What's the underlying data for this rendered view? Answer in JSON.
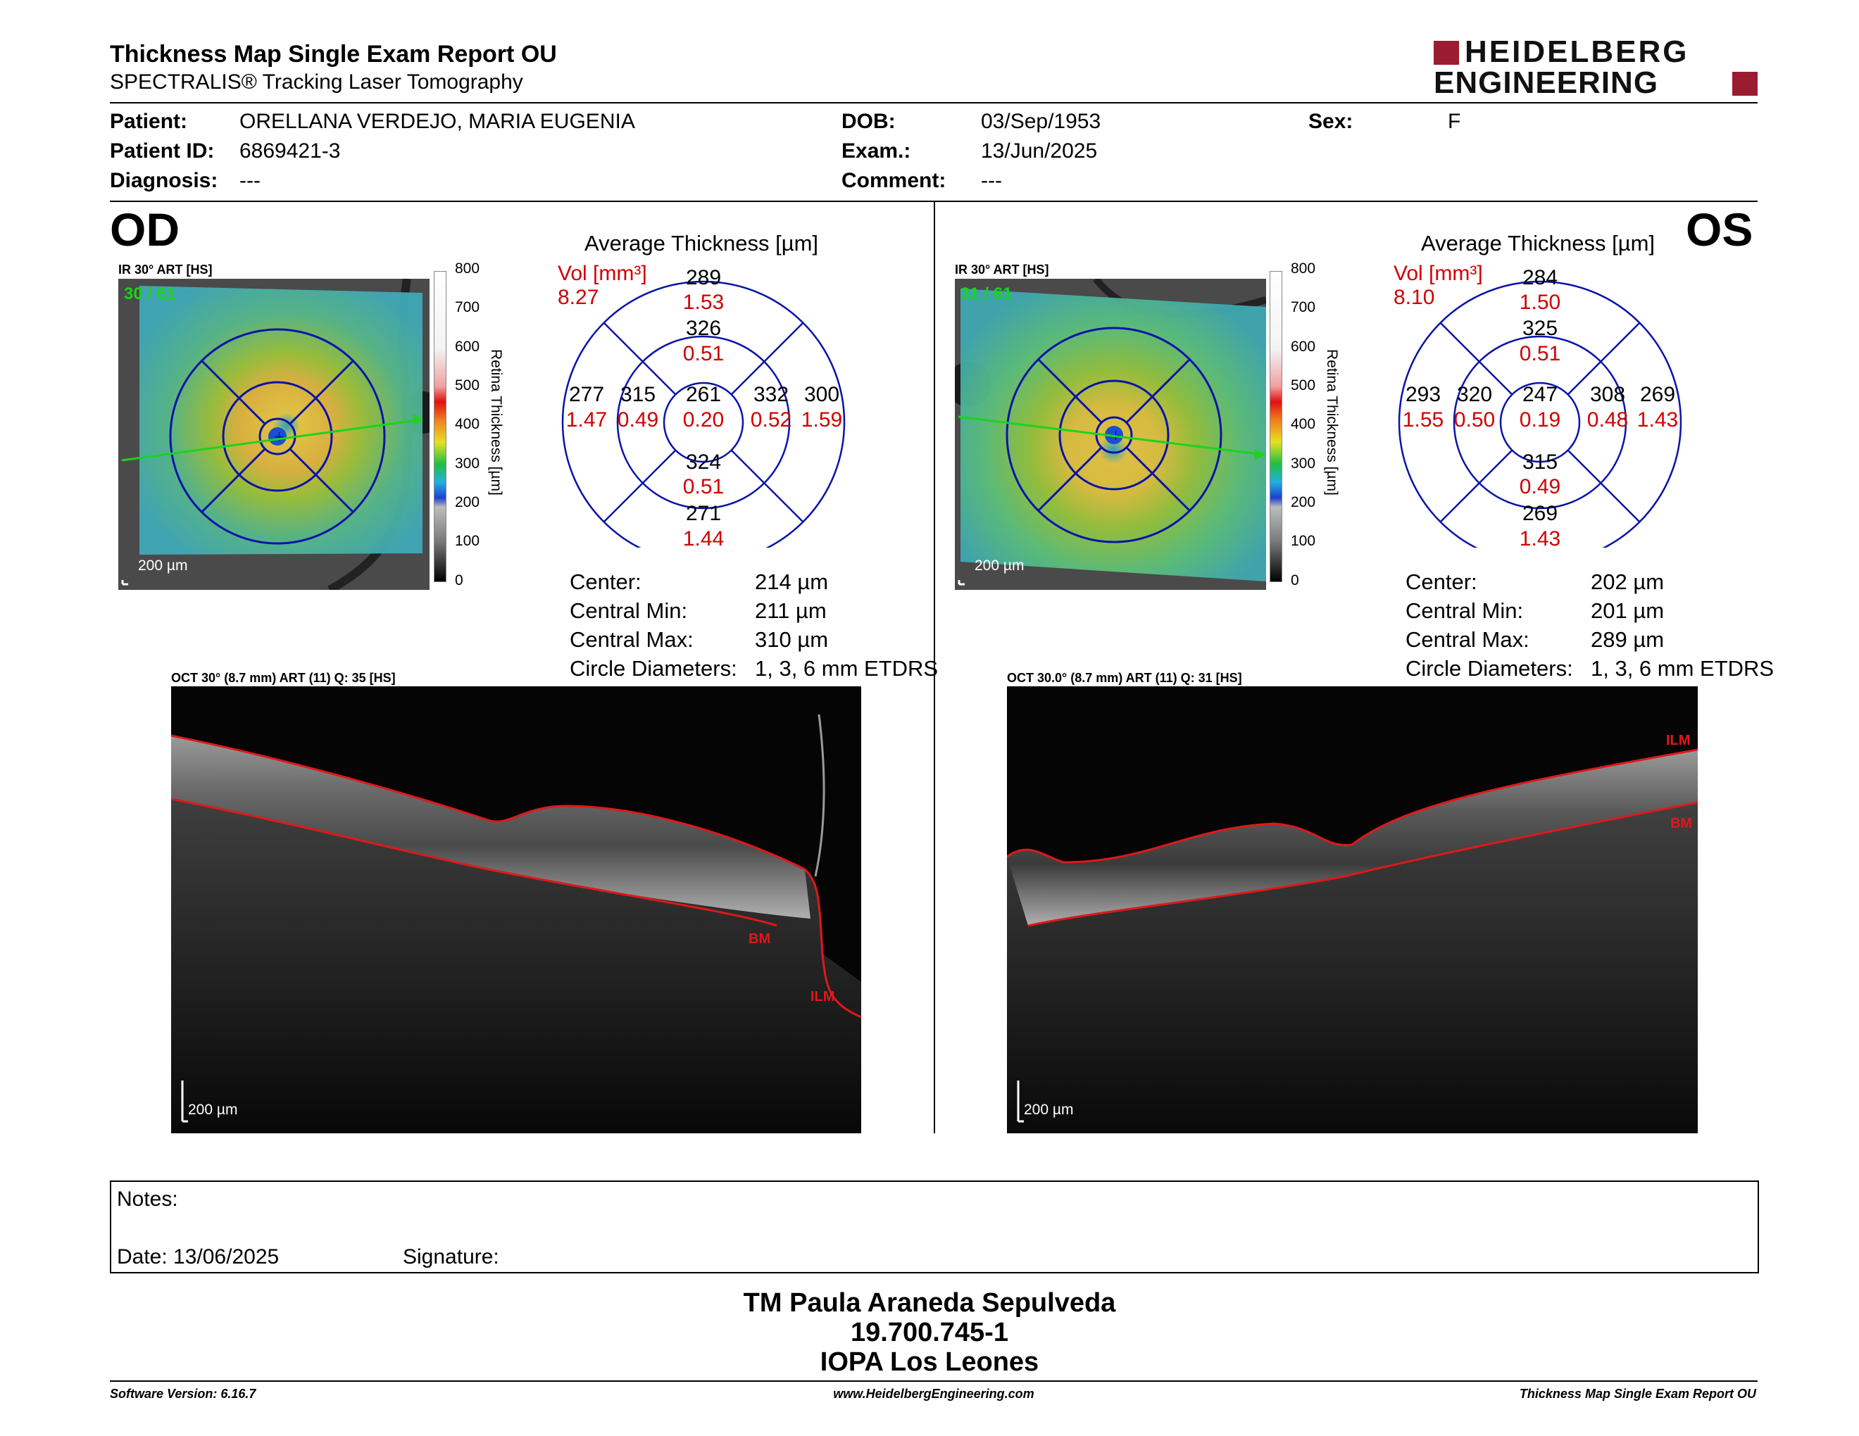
{
  "header": {
    "title": "Thickness Map Single Exam Report OU",
    "subtitle": "SPECTRALIS® Tracking Laser Tomography",
    "logo_line1": "HEIDELBERG",
    "logo_line2": "ENGINEERING"
  },
  "patient": {
    "patient_label": "Patient:",
    "patient_value": "ORELLANA VERDEJO, MARIA EUGENIA",
    "id_label": "Patient ID:",
    "id_value": "6869421-3",
    "diagnosis_label": "Diagnosis:",
    "diagnosis_value": "---",
    "dob_label": "DOB:",
    "dob_value": "03/Sep/1953",
    "exam_label": "Exam.:",
    "exam_value": "13/Jun/2025",
    "comment_label": "Comment:",
    "comment_value": "---",
    "sex_label": "Sex:",
    "sex_value": "F"
  },
  "od": {
    "eye": "OD",
    "ir_label": "IR 30° ART [HS]",
    "ir_counter": "30 / 61",
    "ir_scale": "200 µm",
    "colorbar_ticks": [
      "800",
      "700",
      "600",
      "500",
      "400",
      "300",
      "200",
      "100",
      "0"
    ],
    "colorbar_title": "Retina Thickness [µm]",
    "grid_title": "Average Thickness [µm]",
    "vol_label": "Vol [mm³]",
    "vol_value": "8.27",
    "outer_superior": "289",
    "outer_superior_vol": "1.53",
    "inner_superior": "326",
    "inner_superior_vol": "0.51",
    "outer_temporal": "277",
    "outer_temporal_vol": "1.47",
    "inner_temporal": "315",
    "inner_temporal_vol": "0.49",
    "center": "261",
    "center_vol": "0.20",
    "inner_nasal": "332",
    "inner_nasal_vol": "0.52",
    "outer_nasal": "300",
    "outer_nasal_vol": "1.59",
    "inner_inferior": "324",
    "inner_inferior_vol": "0.51",
    "outer_inferior": "271",
    "outer_inferior_vol": "1.44",
    "stats": {
      "center_label": "Center:",
      "center_value": "214 µm",
      "min_label": "Central Min:",
      "min_value": "211 µm",
      "max_label": "Central Max:",
      "max_value": "310 µm",
      "circle_label": "Circle Diameters:",
      "circle_value": "1, 3, 6 mm ETDRS"
    },
    "oct_label": "OCT 30° (8.7 mm) ART (11) Q: 35 [HS]",
    "oct_scale": "200 µm",
    "ilm_tag": "ILM",
    "bm_tag": "BM"
  },
  "os": {
    "eye": "OS",
    "ir_label": "IR 30° ART [HS]",
    "ir_counter": "31 / 61",
    "ir_scale": "200 µm",
    "colorbar_ticks": [
      "800",
      "700",
      "600",
      "500",
      "400",
      "300",
      "200",
      "100",
      "0"
    ],
    "colorbar_title": "Retina Thickness [µm]",
    "grid_title": "Average Thickness [µm]",
    "vol_label": "Vol [mm³]",
    "vol_value": "8.10",
    "outer_superior": "284",
    "outer_superior_vol": "1.50",
    "inner_superior": "325",
    "inner_superior_vol": "0.51",
    "outer_temporal": "293",
    "outer_temporal_vol": "1.55",
    "inner_temporal": "320",
    "inner_temporal_vol": "0.50",
    "center": "247",
    "center_vol": "0.19",
    "inner_nasal": "308",
    "inner_nasal_vol": "0.48",
    "outer_nasal": "269",
    "outer_nasal_vol": "1.43",
    "inner_inferior": "315",
    "inner_inferior_vol": "0.49",
    "outer_inferior": "269",
    "outer_inferior_vol": "1.43",
    "stats": {
      "center_label": "Center:",
      "center_value": "202 µm",
      "min_label": "Central Min:",
      "min_value": "201 µm",
      "max_label": "Central Max:",
      "max_value": "289 µm",
      "circle_label": "Circle Diameters:",
      "circle_value": "1, 3, 6 mm ETDRS"
    },
    "oct_label": "OCT 30.0° (8.7 mm) ART (11) Q: 31 [HS]",
    "oct_scale": "200 µm",
    "ilm_tag": "ILM",
    "bm_tag": "BM"
  },
  "notes": {
    "notes_label": "Notes:",
    "date_label": "Date: 13/06/2025",
    "signature_label": "Signature:"
  },
  "signature_block": {
    "line1": "TM Paula Araneda Sepulveda",
    "line2": "19.700.745-1",
    "line3": "IOPA Los Leones"
  },
  "footer": {
    "software": "Software Version: 6.16.7",
    "website": "www.HeidelbergEngineering.com",
    "report": "Thickness Map Single Exam Report OU"
  },
  "colors": {
    "accent_red": "#d10000",
    "logo_red": "#9b1b30",
    "grid_blue": "#0a14a8",
    "scan_green": "#1bd41b"
  }
}
